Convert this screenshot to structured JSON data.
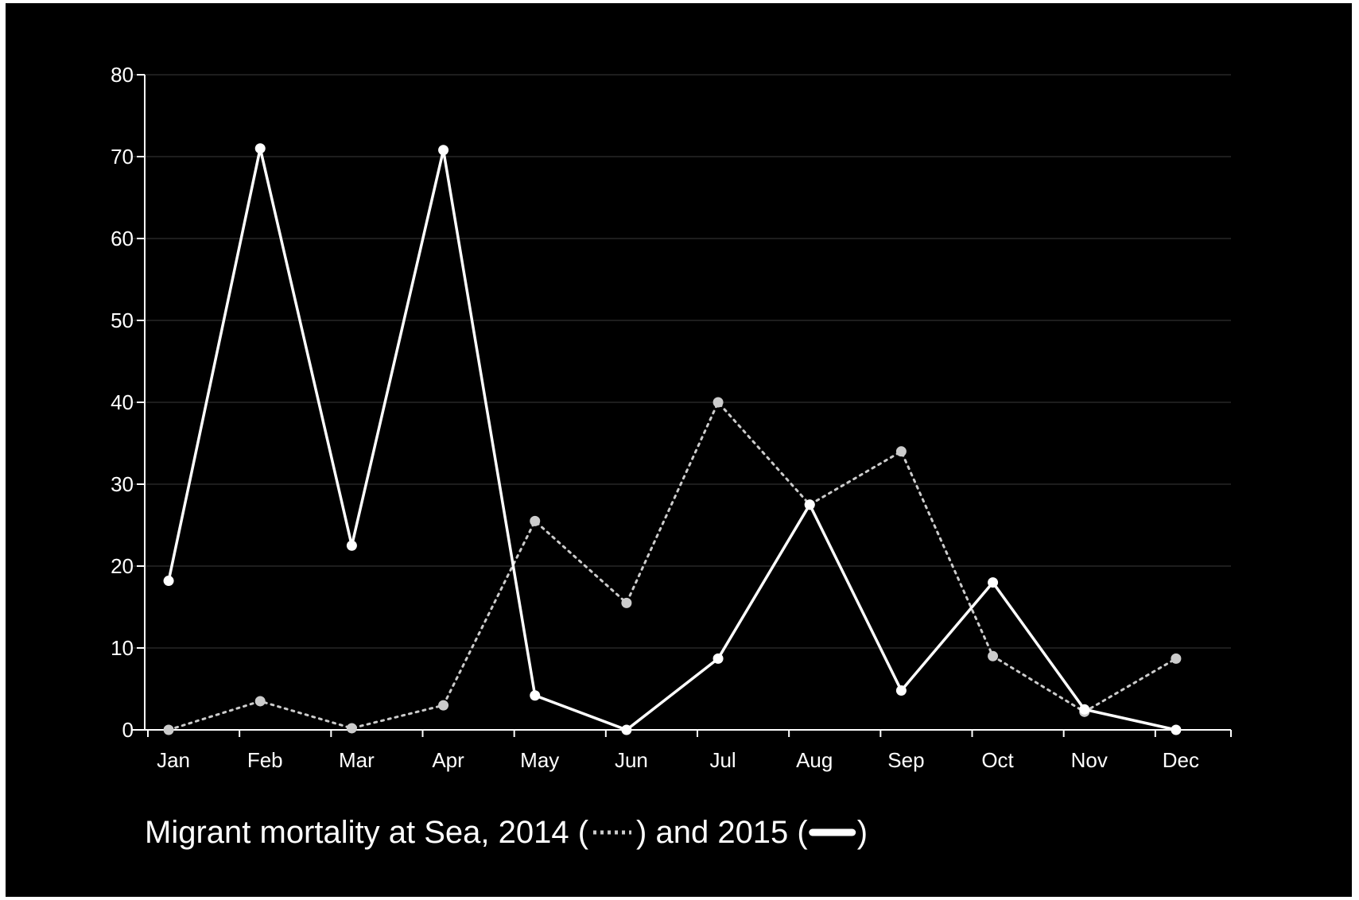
{
  "chart_data": {
    "type": "line",
    "title": "",
    "xlabel": "",
    "ylabel": "",
    "categories": [
      "Jan",
      "Feb",
      "Mar",
      "Apr",
      "May",
      "Jun",
      "Jul",
      "Aug",
      "Sep",
      "Oct",
      "Nov",
      "Dec"
    ],
    "ylim": [
      0,
      80
    ],
    "yticks": [
      0,
      10,
      20,
      30,
      40,
      50,
      60,
      70,
      80
    ],
    "grid": true,
    "series": [
      {
        "name": "2014",
        "style": "dotted",
        "color": "#cccccc",
        "values": [
          0,
          3.5,
          0.2,
          3,
          25.5,
          15.5,
          40,
          27.5,
          34,
          9,
          2.2,
          8.7
        ]
      },
      {
        "name": "2015",
        "style": "solid",
        "color": "#ffffff",
        "values": [
          18.2,
          71,
          22.5,
          70.8,
          4.2,
          0,
          8.7,
          27.5,
          4.8,
          18,
          2.5,
          0
        ]
      }
    ],
    "caption": {
      "prefix": "Migrant mortality at Sea, 2014 (",
      "middle": ") and 2015 (",
      "suffix": ")"
    }
  },
  "colors": {
    "background": "#000000",
    "axis": "#ffffff",
    "grid": "#3a3a3a"
  }
}
